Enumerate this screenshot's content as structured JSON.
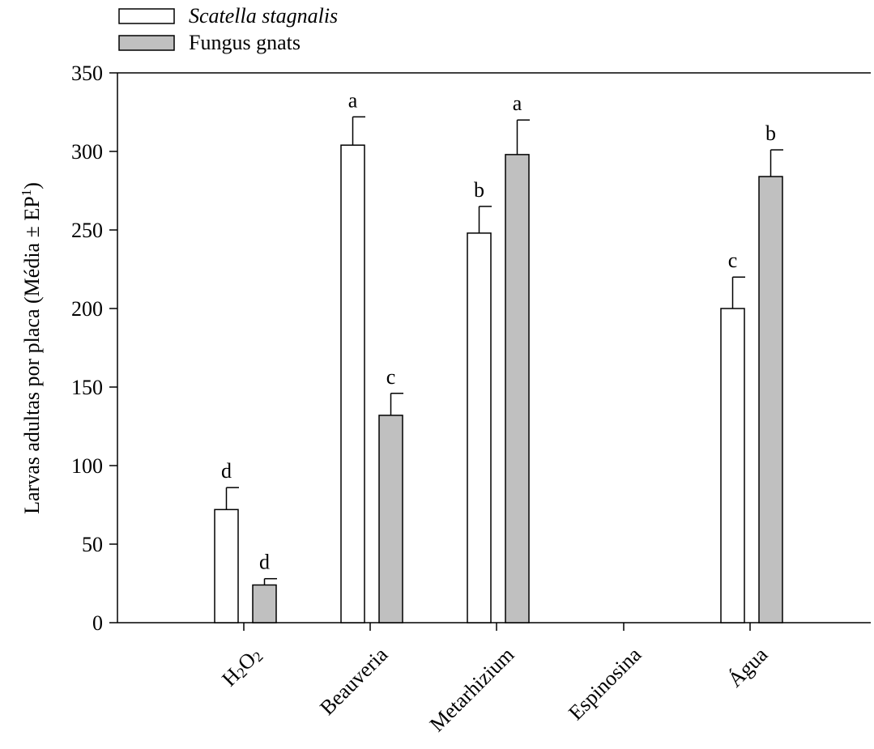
{
  "chart_data": {
    "type": "bar",
    "ylabel": "Larvas adultas por placa (Média ± EP",
    "ylabel_sup": "1",
    "ylabel_end": ")",
    "xlabel": "",
    "ylim": [
      0,
      350
    ],
    "yticks": [
      0,
      50,
      100,
      150,
      200,
      250,
      300,
      350
    ],
    "grid": false,
    "legend_position": "top-left",
    "categories": [
      {
        "label": "H",
        "sub1": "2",
        "mid": "O",
        "sub2": "2",
        "formula": true
      },
      {
        "label": "Beauveria"
      },
      {
        "label": "Metarhizium"
      },
      {
        "label": "Espinosina"
      },
      {
        "label": "Água"
      }
    ],
    "series": [
      {
        "name": "Scatella stagnalis",
        "italic": true,
        "color": "#ffffff",
        "values": [
          72,
          304,
          248,
          0,
          200
        ],
        "errors": [
          14,
          18,
          17,
          0,
          20
        ],
        "letters": [
          "d",
          "a",
          "b",
          "",
          "c"
        ]
      },
      {
        "name": "Fungus gnats",
        "italic": false,
        "color": "#c0c0c0",
        "values": [
          24,
          132,
          298,
          0,
          284
        ],
        "errors": [
          4,
          14,
          22,
          0,
          17
        ],
        "letters": [
          "d",
          "c",
          "a",
          "",
          "b"
        ]
      }
    ]
  }
}
